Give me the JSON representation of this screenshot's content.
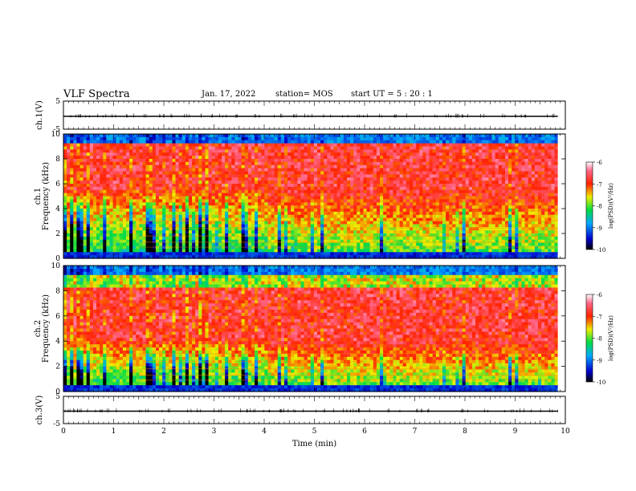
{
  "header": {
    "title": "VLF Spectra",
    "date": "Jan. 17, 2022",
    "station": "station= MOS",
    "start": "start UT =  5 : 20 : 1"
  },
  "chart_data": [
    {
      "type": "line",
      "panel": "ch1-waveform",
      "ylabel": "ch.1(V)",
      "ylim": [
        -5,
        5
      ],
      "yticks": [
        "5",
        "-5"
      ],
      "x": [
        0,
        10
      ],
      "values": [
        0,
        0
      ],
      "xlim": [
        0,
        10
      ]
    },
    {
      "type": "heatmap",
      "panel": "ch1-spectrogram",
      "ylabel": "ch.1\nFrequency (kHz)",
      "ylim": [
        0,
        10
      ],
      "yticks": [
        "0",
        "2",
        "4",
        "6",
        "8",
        "10"
      ],
      "xlim": [
        0,
        10
      ],
      "data_end_min": 9.85,
      "colorbar": {
        "label": "log(PSD)(V²/Hz)",
        "range": [
          -10,
          -6
        ],
        "ticks": [
          "-6",
          "-7",
          "-8",
          "-9",
          "-10"
        ]
      },
      "hot_band_khz": [
        5.5,
        9.2
      ]
    },
    {
      "type": "heatmap",
      "panel": "ch2-spectrogram",
      "ylabel": "ch.2\nFrequency (kHz)",
      "ylim": [
        0,
        10
      ],
      "yticks": [
        "0",
        "2",
        "4",
        "6",
        "8",
        "10"
      ],
      "xlim": [
        0,
        10
      ],
      "data_end_min": 9.85,
      "colorbar": {
        "label": "log(PSD)(V²/Hz)",
        "range": [
          -10,
          -6
        ],
        "ticks": [
          "-6",
          "-7",
          "-8",
          "-9",
          "-10"
        ]
      },
      "hot_band_khz": [
        4.0,
        8.2
      ]
    },
    {
      "type": "line",
      "panel": "ch3-waveform",
      "ylabel": "ch.3(V)",
      "ylim": [
        -5,
        5
      ],
      "yticks": [
        "5",
        "-5"
      ],
      "x": [
        0,
        10
      ],
      "values": [
        0,
        0
      ],
      "xlim": [
        0,
        10
      ],
      "xlabel": "Time (min)",
      "xticks": [
        "0",
        "1",
        "2",
        "3",
        "4",
        "5",
        "6",
        "7",
        "8",
        "9",
        "10"
      ]
    }
  ]
}
